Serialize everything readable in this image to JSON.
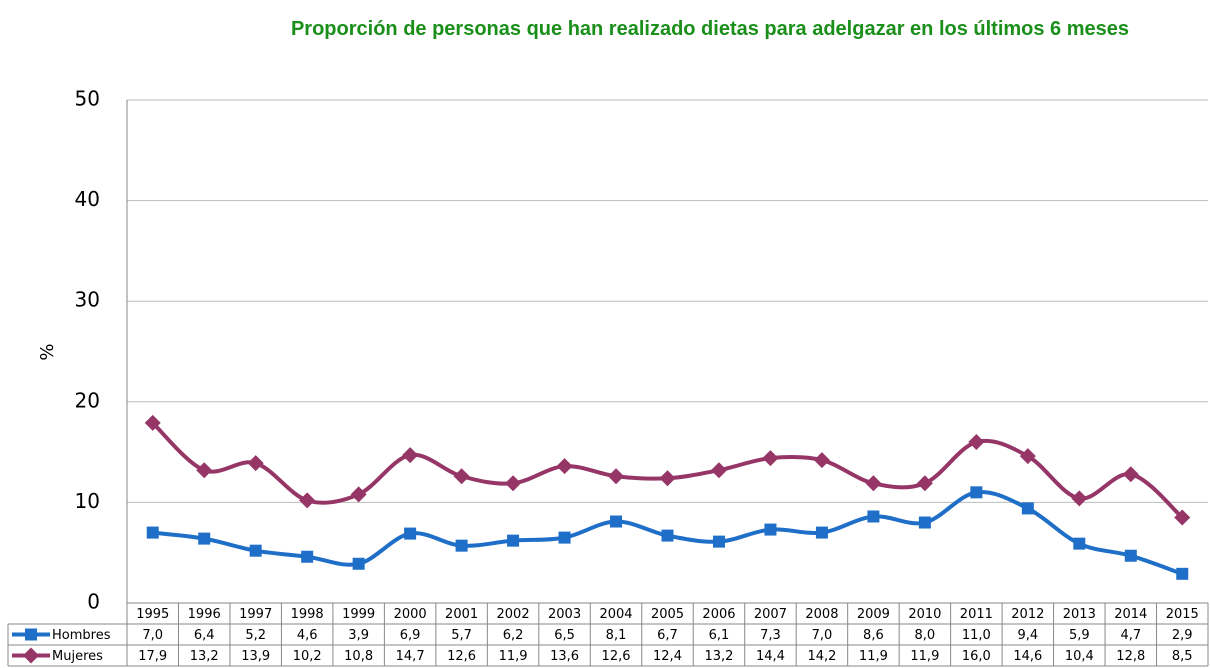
{
  "chart_data": {
    "type": "line",
    "title": "Proporción de personas que han realizado dietas para adelgazar en los últimos 6 meses",
    "ylabel": "%",
    "categories": [
      "1995",
      "1996",
      "1997",
      "1998",
      "1999",
      "2000",
      "2001",
      "2002",
      "2003",
      "2004",
      "2005",
      "2006",
      "2007",
      "2008",
      "2009",
      "2010",
      "2011",
      "2012",
      "2013",
      "2014",
      "2015"
    ],
    "series": [
      {
        "name": "Hombres",
        "color": "#1f6fc8",
        "marker": "square",
        "values": [
          7.0,
          6.4,
          5.2,
          4.6,
          3.9,
          6.9,
          5.7,
          6.2,
          6.5,
          8.1,
          6.7,
          6.1,
          7.3,
          7.0,
          8.6,
          8.0,
          11.0,
          9.4,
          5.9,
          4.7,
          2.9
        ],
        "value_labels": [
          "7,0",
          "6,4",
          "5,2",
          "4,6",
          "3,9",
          "6,9",
          "5,7",
          "6,2",
          "6,5",
          "8,1",
          "6,7",
          "6,1",
          "7,3",
          "7,0",
          "8,6",
          "8,0",
          "11,0",
          "9,4",
          "5,9",
          "4,7",
          "2,9"
        ]
      },
      {
        "name": "Mujeres",
        "color": "#953667",
        "marker": "diamond",
        "values": [
          17.9,
          13.2,
          13.9,
          10.2,
          10.8,
          14.7,
          12.6,
          11.9,
          13.6,
          12.6,
          12.4,
          13.2,
          14.4,
          14.2,
          11.9,
          11.9,
          16.0,
          14.6,
          10.4,
          12.8,
          8.5
        ],
        "value_labels": [
          "17,9",
          "13,2",
          "13,9",
          "10,2",
          "10,8",
          "14,7",
          "12,6",
          "11,9",
          "13,6",
          "12,6",
          "12,4",
          "13,2",
          "14,4",
          "14,2",
          "11,9",
          "11,9",
          "16,0",
          "14,6",
          "10,4",
          "12,8",
          "8,5"
        ]
      }
    ],
    "ylim": [
      0,
      50
    ],
    "yticks": [
      0,
      10,
      20,
      30,
      40,
      50
    ],
    "grid": true,
    "smooth": true
  }
}
